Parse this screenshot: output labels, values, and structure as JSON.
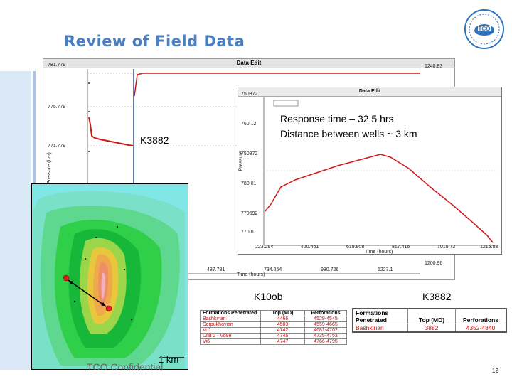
{
  "slide": {
    "title": "Review of Field Data",
    "footer": "TCO Confidential",
    "page_number": "12"
  },
  "main_chart": {
    "window_title": "Data Edit",
    "y_ticks": [
      "781.779",
      "775.779",
      "771.779"
    ],
    "x_ticks": [
      "487.781",
      "734.254",
      "980.726",
      "1227.1"
    ],
    "x_label": "Time (hours)",
    "y_label": "Pressure (bar)",
    "right_top_value": "1240.83",
    "right_bottom_value": "1200.96"
  },
  "inset_chart": {
    "window_title": "Data Edit",
    "y_ticks": [
      "750372",
      "760 12",
      "750372",
      "780 01",
      "770592",
      "770 0"
    ],
    "x_ticks": [
      "223.294",
      "420.461",
      "619.908",
      "817.416",
      "1015.72",
      "1215.83"
    ],
    "x_label": "Time (hours)",
    "y_label": "Pressure",
    "callout_line1": "Response time – 32.5 hrs",
    "callout_line2": "Distance between wells ~ 3 km"
  },
  "labels": {
    "k3882_top": "K3882",
    "k10ob": "K10ob",
    "k3882_right": "K3882",
    "scale": "1 km"
  },
  "table_k10": {
    "headers": [
      "Formations Penetrated",
      "Top (MD)",
      "Perforations"
    ],
    "rows": [
      [
        "Bashkirian",
        "4466",
        "4529-4545"
      ],
      [
        "Serpukhovian",
        "4503",
        "4559-4665"
      ],
      [
        "Vo1",
        "4742",
        "4681-4702"
      ],
      [
        "Unit 2 - Vo9e",
        "4745",
        "4735-4753"
      ],
      [
        "Vi6",
        "4747",
        "4766-4795"
      ]
    ]
  },
  "table_k3882": {
    "headers": [
      "Formations Penetrated",
      "Top (MD)",
      "Perforations"
    ],
    "rows": [
      [
        "Bashkirian",
        "3882",
        "4352-4840"
      ]
    ]
  },
  "colors": {
    "title": "#4a7fc1",
    "curve": "#d01818",
    "table_red": "#c01010"
  }
}
